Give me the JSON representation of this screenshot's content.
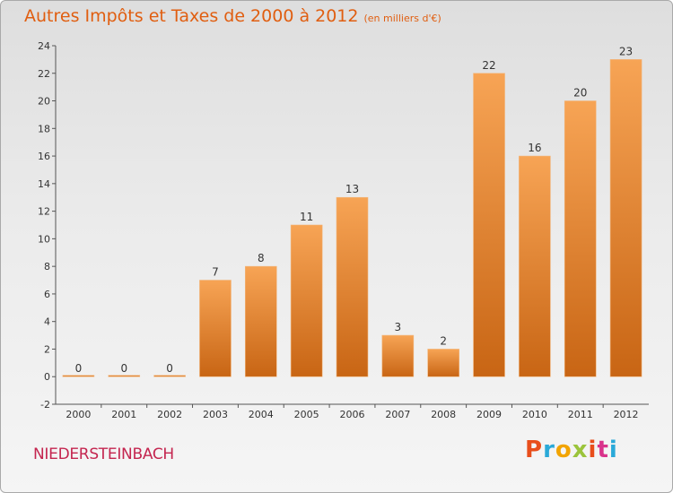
{
  "chart_data": {
    "type": "bar",
    "title": "Autres Impôts et Taxes de 2000 à 2012",
    "subtitle": "(en milliers d'€)",
    "categories": [
      "2000",
      "2001",
      "2002",
      "2003",
      "2004",
      "2005",
      "2006",
      "2007",
      "2008",
      "2009",
      "2010",
      "2011",
      "2012"
    ],
    "values": [
      0,
      0,
      0,
      7,
      8,
      11,
      13,
      3,
      2,
      22,
      16,
      20,
      23
    ],
    "data_labels": [
      "0",
      "0",
      "0",
      "7",
      "8",
      "11",
      "13",
      "3",
      "2",
      "22",
      "16",
      "20",
      "23"
    ],
    "ylim": [
      -2,
      24
    ],
    "y_ticks": [
      -2,
      0,
      2,
      4,
      6,
      8,
      10,
      12,
      14,
      16,
      18,
      20,
      22,
      24
    ],
    "y_tick_labels": [
      "-2",
      "0",
      "2",
      "4",
      "6",
      "8",
      "10",
      "12",
      "14",
      "16",
      "18",
      "20",
      "22",
      "24"
    ],
    "xlabel": "",
    "ylabel": "",
    "grid": false,
    "legend": "none",
    "bar_color_light": "#f7a455",
    "bar_color_dark": "#c86514"
  },
  "footer": {
    "commune": "NIEDERSTEINBACH",
    "brand_letters": [
      "P",
      "r",
      "o",
      "x",
      "i",
      "t",
      "i"
    ],
    "brand_colors": [
      "#e84e1b",
      "#2aa9d8",
      "#f2a400",
      "#9bc43b",
      "#e84e1b",
      "#d9338b",
      "#2aa9d8"
    ]
  },
  "colors": {
    "title": "#e05e10",
    "commune": "#c4254f"
  }
}
